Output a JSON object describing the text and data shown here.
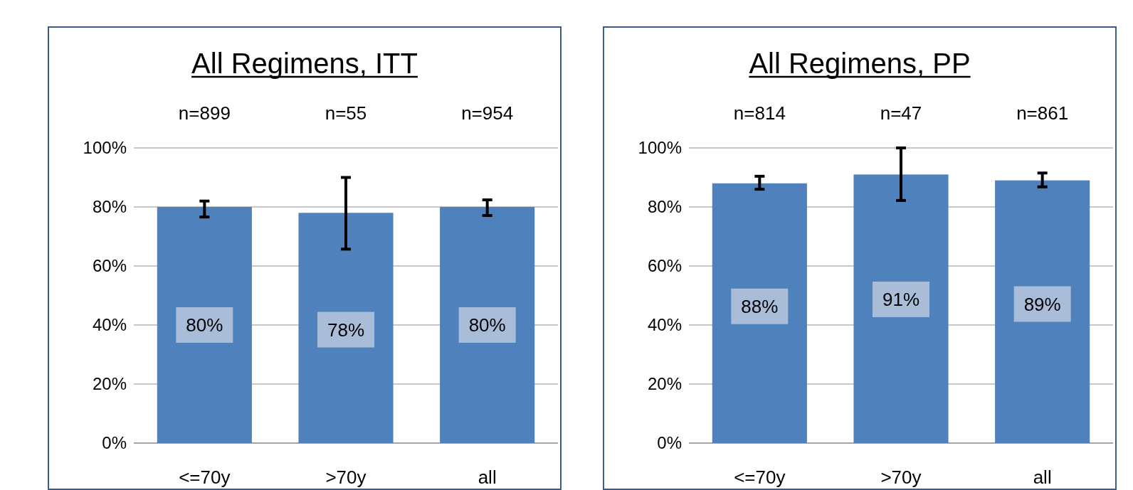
{
  "chart_data": [
    {
      "type": "bar",
      "title": "All Regimens, ITT",
      "categories": [
        "<=70y",
        ">70y",
        "all"
      ],
      "values": [
        80,
        78,
        80
      ],
      "color": "#4f81bd",
      "errors": [
        [
          76.6,
          82
        ],
        [
          65.7,
          90
        ],
        [
          77.1,
          82.4
        ]
      ],
      "value_labels": [
        "80%",
        "78%",
        "80%"
      ],
      "annotations": [
        "n=899",
        "n=55",
        "n=954"
      ],
      "ylim": [
        0,
        100
      ],
      "yticks": [
        {
          "value": 0,
          "label": "0%"
        },
        {
          "value": 20,
          "label": "20%"
        },
        {
          "value": 40,
          "label": "40%"
        },
        {
          "value": 60,
          "label": "60%"
        },
        {
          "value": 80,
          "label": "80%"
        },
        {
          "value": 100,
          "label": "100%"
        }
      ],
      "grid": "y"
    },
    {
      "type": "bar",
      "title": "All Regimens, PP",
      "categories": [
        "<=70y",
        ">70y",
        "all"
      ],
      "values": [
        88,
        91,
        89
      ],
      "color": "#4f81bd",
      "errors": [
        [
          86,
          90.4
        ],
        [
          82.2,
          100
        ],
        [
          86.8,
          91.5
        ]
      ],
      "value_labels": [
        "88%",
        "91%",
        "89%"
      ],
      "annotations": [
        "n=814",
        "n=47",
        "n=861"
      ],
      "ylim": [
        0,
        100
      ],
      "yticks": [
        {
          "value": 0,
          "label": "0%"
        },
        {
          "value": 20,
          "label": "20%"
        },
        {
          "value": 40,
          "label": "40%"
        },
        {
          "value": 60,
          "label": "60%"
        },
        {
          "value": 80,
          "label": "80%"
        },
        {
          "value": 100,
          "label": "100%"
        }
      ],
      "grid": "y"
    }
  ]
}
